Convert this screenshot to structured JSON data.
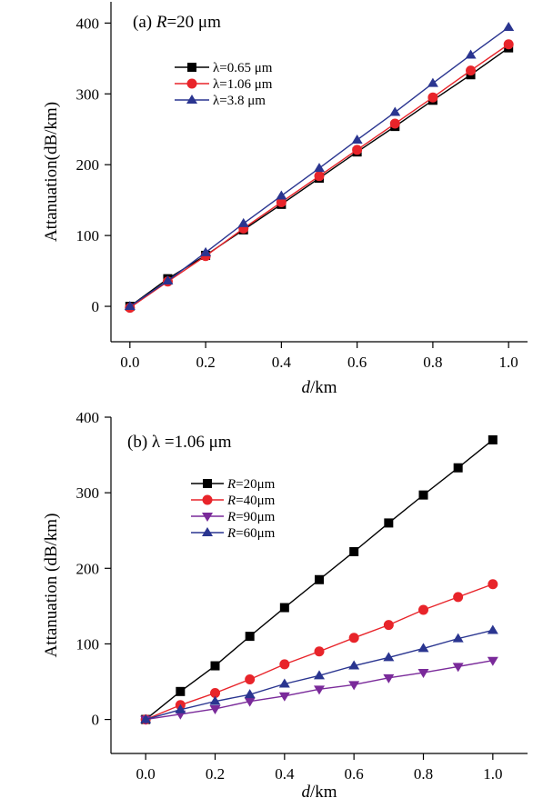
{
  "chart_data": [
    {
      "type": "line",
      "title": "(a) R=20 μm",
      "title_parts": {
        "prefix": "(a) ",
        "italic": "R",
        "suffix": "=20 μm"
      },
      "xlabel": "d/km",
      "xlabel_parts": {
        "italic": "d",
        "suffix": "/km"
      },
      "ylabel": "Attanuation(dB/km)",
      "xlim": [
        -0.05,
        1.05
      ],
      "ylim": [
        -50,
        430
      ],
      "xticks": [
        0.0,
        0.2,
        0.4,
        0.6,
        0.8,
        1.0
      ],
      "xtick_labels": [
        "0.0",
        "0.2",
        "0.4",
        "0.6",
        "0.8",
        "1.0"
      ],
      "yticks": [
        0,
        100,
        200,
        300,
        400
      ],
      "ytick_labels": [
        "0",
        "100",
        "200",
        "300",
        "400"
      ],
      "legend_position": "upper-left",
      "x": [
        0.0,
        0.1,
        0.2,
        0.3,
        0.4,
        0.5,
        0.6,
        0.7,
        0.8,
        0.9,
        1.0
      ],
      "series": [
        {
          "name": "λ=0.65 μm",
          "label_parts": {
            "italic": "",
            "text": "λ=0.65 μm"
          },
          "color": "#000000",
          "marker": "square",
          "values": [
            0,
            39,
            72,
            108,
            144,
            181,
            218,
            254,
            291,
            327,
            365
          ]
        },
        {
          "name": "λ=1.06 μm",
          "label_parts": {
            "italic": "",
            "text": "λ=1.06 μm"
          },
          "color": "#e8242a",
          "marker": "circle",
          "values": [
            -2,
            35,
            71,
            110,
            147,
            184,
            221,
            258,
            295,
            333,
            370
          ]
        },
        {
          "name": "λ=3.8 μm",
          "label_parts": {
            "italic": "",
            "text": "λ=3.8 μm"
          },
          "color": "#2a3590",
          "marker": "triangle-up",
          "values": [
            0,
            36,
            76,
            117,
            156,
            195,
            235,
            274,
            315,
            355,
            394
          ]
        }
      ]
    },
    {
      "type": "line",
      "title": "(b) λ =1.06 μm",
      "title_parts": {
        "prefix": "(b) ",
        "italic": "",
        "suffix": "λ =1.06 μm"
      },
      "xlabel": "d/km",
      "xlabel_parts": {
        "italic": "d",
        "suffix": "/km"
      },
      "ylabel": "Attanuation (dB/km)",
      "xlim": [
        -0.1,
        1.1
      ],
      "ylim": [
        -45,
        400
      ],
      "xticks": [
        0.0,
        0.2,
        0.4,
        0.6,
        0.8,
        1.0
      ],
      "xtick_labels": [
        "0.0",
        "0.2",
        "0.4",
        "0.6",
        "0.8",
        "1.0"
      ],
      "yticks": [
        0,
        100,
        200,
        300,
        400
      ],
      "ytick_labels": [
        "0",
        "100",
        "200",
        "300",
        "400"
      ],
      "legend_position": "upper-left",
      "x": [
        0.0,
        0.1,
        0.2,
        0.3,
        0.4,
        0.5,
        0.6,
        0.7,
        0.8,
        0.9,
        1.0
      ],
      "series": [
        {
          "name": "R=20μm",
          "label_parts": {
            "italic": "R",
            "text": "=20μm"
          },
          "color": "#000000",
          "marker": "square",
          "values": [
            0,
            37,
            71,
            110,
            148,
            185,
            222,
            260,
            297,
            333,
            370
          ]
        },
        {
          "name": "R=40μm",
          "label_parts": {
            "italic": "R",
            "text": "=40μm"
          },
          "color": "#e8242a",
          "marker": "circle",
          "values": [
            0,
            19,
            35,
            53,
            73,
            90,
            108,
            125,
            145,
            162,
            179
          ]
        },
        {
          "name": "R=90μm",
          "label_parts": {
            "italic": "R",
            "text": "=90μm"
          },
          "color": "#7a2a9a",
          "marker": "triangle-down",
          "values": [
            0,
            7,
            14,
            24,
            31,
            40,
            46,
            55,
            62,
            70,
            78
          ]
        },
        {
          "name": "R=60μm",
          "label_parts": {
            "italic": "R",
            "text": "=60μm"
          },
          "color": "#2a3590",
          "marker": "triangle-up",
          "values": [
            0,
            13,
            24,
            33,
            47,
            58,
            71,
            82,
            94,
            107,
            118
          ]
        }
      ]
    }
  ]
}
